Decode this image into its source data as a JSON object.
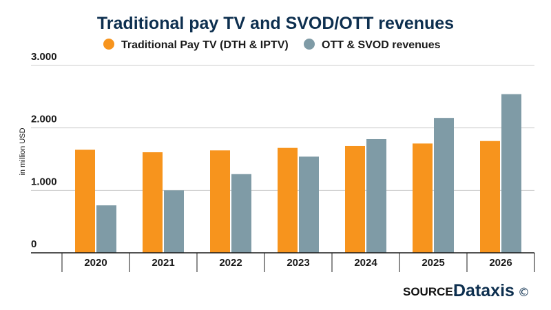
{
  "chart_data": {
    "type": "bar",
    "title": "Traditional pay TV and SVOD/OTT revenues",
    "ylabel": "in million USD",
    "xlabel": "",
    "categories": [
      "2020",
      "2021",
      "2022",
      "2023",
      "2024",
      "2025",
      "2026"
    ],
    "series": [
      {
        "name": "Traditional Pay TV (DTH & IPTV)",
        "color": "#f7941d",
        "values": [
          1650,
          1610,
          1640,
          1680,
          1710,
          1750,
          1790
        ]
      },
      {
        "name": "OTT & SVOD revenues",
        "color": "#7f9ba6",
        "values": [
          760,
          1000,
          1260,
          1540,
          1820,
          2160,
          2540
        ]
      }
    ],
    "ylim": [
      0,
      3000
    ],
    "yticks": [
      0,
      1000,
      2000,
      3000
    ],
    "ytick_labels": [
      "0",
      "1.000",
      "2.000",
      "3.000"
    ],
    "grid": true,
    "legend_position": "top-center"
  },
  "footer": {
    "source_label": "SOURCE:",
    "brand": "Dataxis",
    "copyright_symbol": "©"
  }
}
